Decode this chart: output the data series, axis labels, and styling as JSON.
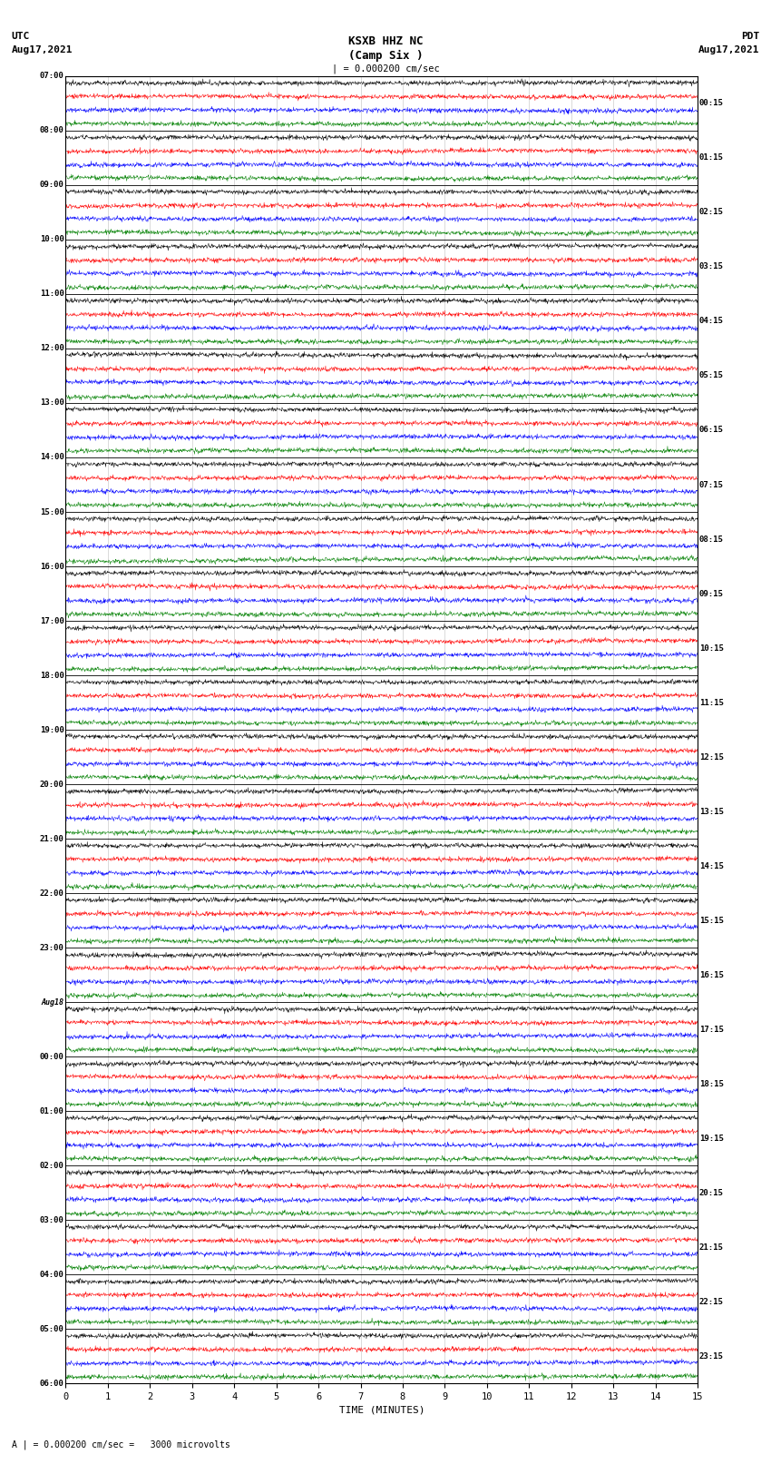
{
  "title_line1": "KSXB HHZ NC",
  "title_line2": "(Camp Six )",
  "scale_label": "| = 0.000200 cm/sec",
  "bottom_label": "A | = 0.000200 cm/sec =   3000 microvolts",
  "xlabel": "TIME (MINUTES)",
  "utc_labels": [
    "07:00",
    "08:00",
    "09:00",
    "10:00",
    "11:00",
    "12:00",
    "13:00",
    "14:00",
    "15:00",
    "16:00",
    "17:00",
    "18:00",
    "19:00",
    "20:00",
    "21:00",
    "22:00",
    "23:00",
    "Aug18",
    "00:00",
    "01:00",
    "02:00",
    "03:00",
    "04:00",
    "05:00",
    "06:00"
  ],
  "pdt_labels": [
    "00:15",
    "01:15",
    "02:15",
    "03:15",
    "04:15",
    "05:15",
    "06:15",
    "07:15",
    "08:15",
    "09:15",
    "10:15",
    "11:15",
    "12:15",
    "13:15",
    "14:15",
    "15:15",
    "16:15",
    "17:15",
    "18:15",
    "19:15",
    "20:15",
    "21:15",
    "22:15",
    "23:15"
  ],
  "trace_colors": [
    "black",
    "red",
    "blue",
    "green"
  ],
  "n_time_blocks": 24,
  "traces_per_block": 4,
  "xmin": 0,
  "xmax": 15,
  "bg_color": "white",
  "seed": 12345
}
